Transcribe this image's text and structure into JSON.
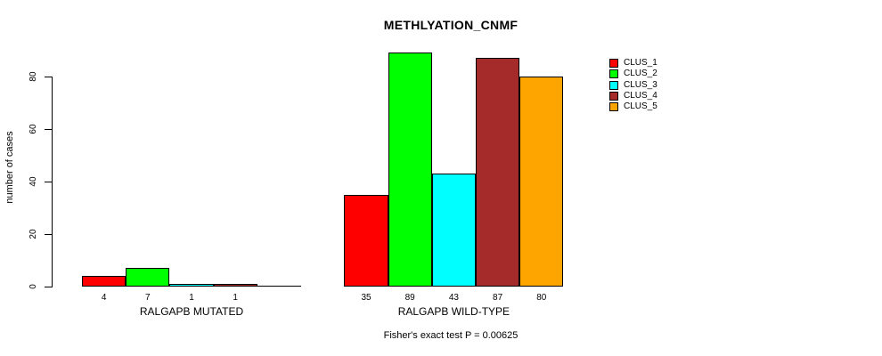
{
  "figure": {
    "background_color": "#FFFFFF",
    "axis_color": "#000000"
  },
  "chart_data": {
    "type": "bar",
    "title": "METHLYATION_CNMF",
    "xlabel": "",
    "ylabel": "number of cases",
    "annotation": "Fisher's exact test P = 0.00625",
    "yticks": [
      0,
      20,
      40,
      60,
      80
    ],
    "ylim": [
      0,
      89
    ],
    "grid": false,
    "legend_position": "right-outside",
    "series": [
      {
        "name": "CLUS_1",
        "color": "#FF0000"
      },
      {
        "name": "CLUS_2",
        "color": "#00FF00"
      },
      {
        "name": "CLUS_3",
        "color": "#00FFFF"
      },
      {
        "name": "CLUS_4",
        "color": "#A52A2A"
      },
      {
        "name": "CLUS_5",
        "color": "#FFA500"
      }
    ],
    "groups": [
      {
        "label": "RALGAPB MUTATED",
        "values": [
          4,
          7,
          1,
          1,
          0
        ],
        "value_labels": [
          "4",
          "7",
          "1",
          "1",
          ""
        ]
      },
      {
        "label": "RALGAPB WILD-TYPE",
        "values": [
          35,
          89,
          43,
          87,
          80
        ],
        "value_labels": [
          "35",
          "89",
          "43",
          "87",
          "80"
        ]
      }
    ]
  }
}
